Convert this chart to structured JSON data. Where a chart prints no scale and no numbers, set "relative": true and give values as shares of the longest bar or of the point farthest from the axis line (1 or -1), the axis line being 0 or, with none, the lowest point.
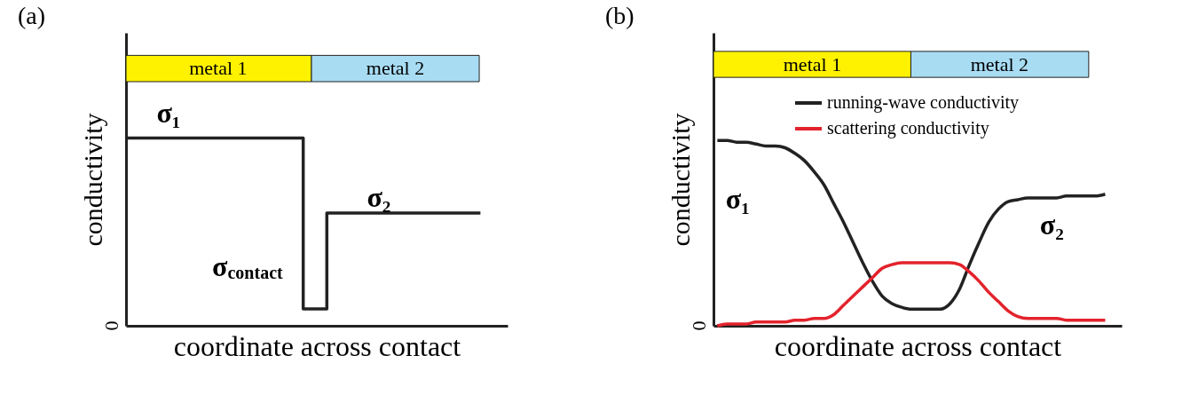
{
  "chart_data": [
    {
      "type": "step",
      "title": "(a)",
      "xlabel": "coordinate across contact",
      "ylabel": "conductivity",
      "relative": true,
      "categories": [
        null,
        null,
        null,
        null,
        null,
        null,
        null,
        null,
        null,
        null,
        null,
        null,
        null,
        null,
        null,
        null,
        null,
        null,
        null,
        null,
        null,
        null,
        null,
        null,
        null,
        null,
        null,
        null,
        null,
        null,
        null
      ],
      "series": [
        {
          "color": "#222222",
          "values": [
            1,
            1,
            1,
            1,
            1,
            1,
            1,
            1,
            1,
            1,
            1,
            1,
            1,
            1,
            1,
            0.09,
            0.09,
            0.6,
            0.6,
            0.6,
            0.6,
            0.6,
            0.6,
            0.6,
            0.6,
            0.6,
            0.6,
            0.6,
            0.6,
            0.6,
            0.6
          ]
        }
      ],
      "annotations": [
        "metal 1",
        "metal 2",
        "σ₁",
        "σ₂",
        "σ$_{contact}$",
        "0"
      ],
      "grid": false
    },
    {
      "type": "line",
      "title": "(b)",
      "xlabel": "coordinate across contact",
      "ylabel": "conductivity",
      "relative": true,
      "categories": [
        null,
        null,
        null,
        null,
        null,
        null,
        null,
        null,
        null,
        null,
        null,
        null,
        null,
        null,
        null,
        null,
        null,
        null,
        null,
        null,
        null,
        null,
        null,
        null,
        null,
        null,
        null,
        null,
        null,
        null,
        null,
        null,
        null,
        null,
        null,
        null,
        null,
        null,
        null,
        null,
        null
      ],
      "series": [
        {
          "name": "running-wave conductivity",
          "color": "#222222",
          "values": [
            1.0,
            1.0,
            0.99,
            0.99,
            0.98,
            0.97,
            0.97,
            0.96,
            0.93,
            0.89,
            0.83,
            0.76,
            0.66,
            0.56,
            0.45,
            0.34,
            0.24,
            0.16,
            0.12,
            0.1,
            0.09,
            0.09,
            0.09,
            0.09,
            0.12,
            0.2,
            0.33,
            0.45,
            0.56,
            0.63,
            0.67,
            0.68,
            0.69,
            0.69,
            0.69,
            0.69,
            0.7,
            0.7,
            0.7,
            0.7,
            0.71
          ]
        },
        {
          "name": "scattering conductivity",
          "color": "#e3232c",
          "values": [
            0.0,
            0.01,
            0.01,
            0.01,
            0.02,
            0.02,
            0.02,
            0.02,
            0.03,
            0.03,
            0.04,
            0.04,
            0.06,
            0.11,
            0.16,
            0.21,
            0.26,
            0.31,
            0.33,
            0.34,
            0.34,
            0.34,
            0.34,
            0.34,
            0.34,
            0.33,
            0.29,
            0.24,
            0.18,
            0.13,
            0.08,
            0.05,
            0.04,
            0.04,
            0.04,
            0.04,
            0.03,
            0.03,
            0.03,
            0.03,
            0.03
          ]
        }
      ],
      "annotations": [
        "metal 1",
        "metal 2",
        "σ₁",
        "σ₂",
        "0"
      ],
      "legend": "top right",
      "grid": false
    }
  ]
}
